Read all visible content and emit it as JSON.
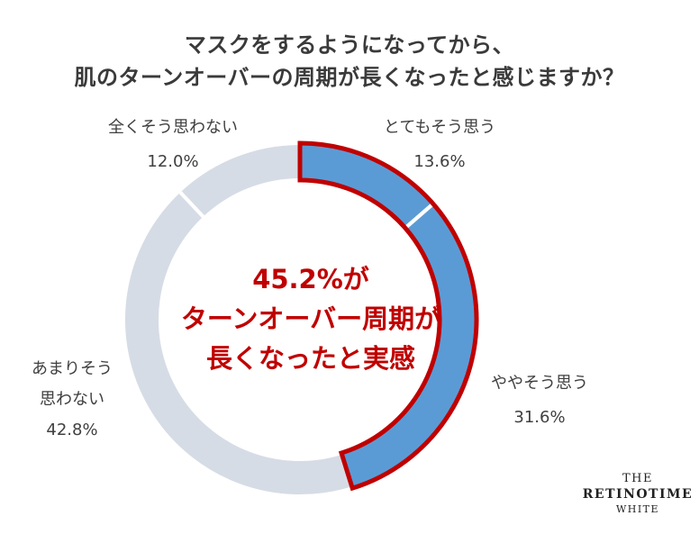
{
  "title": {
    "line1": "マスクをするようになってから、",
    "line2": "肌のターンオーバーの周期が長くなったと感じますか？"
  },
  "chart_data": {
    "type": "pie",
    "variant": "donut",
    "title": "マスクをするようになってから、肌のターンオーバーの周期が長くなったと感じますか？",
    "categories": [
      "とてもそう思う",
      "ややそう思う",
      "あまりそう思わない",
      "全くそう思わない"
    ],
    "values": [
      13.6,
      31.6,
      42.8,
      12.0
    ],
    "value_labels": [
      "13.6%",
      "31.6%",
      "42.8%",
      "12.0%"
    ],
    "colors": [
      "#5b9bd5",
      "#5b9bd5",
      "#d6dce5",
      "#d6dce5"
    ],
    "highlight": {
      "segments": [
        0,
        1
      ],
      "outline_color": "#c00000",
      "text_lines": [
        "45.2%が",
        "ターンオーバー周期が",
        "長くなったと実感"
      ]
    }
  },
  "labels": {
    "s0": {
      "name": "とてもそう思う",
      "value": "13.6%"
    },
    "s1": {
      "name": "ややそう思う",
      "value": "31.6%"
    },
    "s2": {
      "name_line1": "あまりそう",
      "name_line2": "思わない",
      "value": "42.8%"
    },
    "s3": {
      "name": "全くそう思わない",
      "value": "12.0%"
    }
  },
  "brand": {
    "line1": "THE",
    "line2": "RETINOTIME",
    "line3": "WHITE"
  }
}
